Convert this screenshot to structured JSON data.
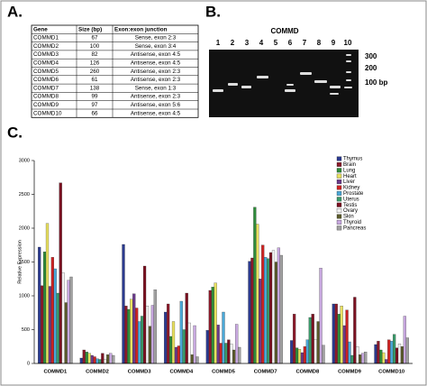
{
  "panels": [
    "A.",
    "B.",
    "C."
  ],
  "table": {
    "header": [
      "Gene",
      "Size (bp)",
      "Exon:exon junction"
    ],
    "rows": [
      [
        "COMMD1",
        "67",
        "Sense, exon 2:3"
      ],
      [
        "COMMD2",
        "100",
        "Sense, exon 3:4"
      ],
      [
        "COMMD3",
        "82",
        "Antisense, exon 4:5"
      ],
      [
        "COMMD4",
        "126",
        "Antisense, exon 4:5"
      ],
      [
        "COMMD5",
        "260",
        "Antisense, exon 2:3"
      ],
      [
        "COMMD6",
        "61",
        "Antisense, exon 2:3"
      ],
      [
        "COMMD7",
        "138",
        "Sense, exon 1:3"
      ],
      [
        "COMMD8",
        "99",
        "Antisense, exon 2:3"
      ],
      [
        "COMMD9",
        "97",
        "Antisense, exon 5:6"
      ],
      [
        "COMMD10",
        "66",
        "Antisense, exon 4:5"
      ]
    ]
  },
  "gel": {
    "title": "COMMD",
    "lanes": [
      "1",
      "2",
      "3",
      "4",
      "5",
      "6",
      "7",
      "8",
      "9",
      "10"
    ],
    "markers": [
      "300",
      "200",
      "100 bp"
    ]
  },
  "chart_data": {
    "type": "bar",
    "y_label": "Relative Expression",
    "categories": [
      "COMMD1",
      "COMMD2",
      "COMMD3",
      "COMMD4",
      "COMMD5",
      "COMMD7",
      "COMMD8",
      "COMMD9",
      "COMMD10"
    ],
    "ylim": [
      0,
      3000
    ],
    "yticks": [
      0,
      500,
      1000,
      1500,
      2000,
      2500,
      3000
    ],
    "legend": "top-right",
    "series": [
      {
        "name": "Thymus",
        "color": "#2b3a8f",
        "values": [
          1720,
          80,
          1760,
          760,
          490,
          1510,
          340,
          880,
          280
        ]
      },
      {
        "name": "Brain",
        "color": "#8b1a2a",
        "values": [
          1150,
          200,
          850,
          880,
          1080,
          1560,
          730,
          880,
          330
        ]
      },
      {
        "name": "Lung",
        "color": "#2e8b3a",
        "values": [
          1650,
          170,
          800,
          400,
          1130,
          2310,
          230,
          730,
          200
        ]
      },
      {
        "name": "Heart",
        "color": "#e8e060",
        "values": [
          2070,
          150,
          950,
          620,
          1190,
          2060,
          210,
          850,
          160
        ]
      },
      {
        "name": "Liver",
        "color": "#6a3a8a",
        "values": [
          1140,
          120,
          1030,
          240,
          570,
          1250,
          160,
          560,
          60
        ]
      },
      {
        "name": "Kidney",
        "color": "#cc2222",
        "values": [
          1570,
          100,
          820,
          260,
          300,
          1750,
          250,
          790,
          350
        ]
      },
      {
        "name": "Prostate",
        "color": "#4aa8d8",
        "values": [
          1400,
          70,
          620,
          920,
          760,
          1570,
          350,
          320,
          330
        ]
      },
      {
        "name": "Uterus",
        "color": "#3a9a6a",
        "values": [
          1040,
          60,
          700,
          500,
          300,
          1550,
          680,
          120,
          430
        ]
      },
      {
        "name": "Testis",
        "color": "#7a1020",
        "values": [
          2670,
          150,
          1440,
          1040,
          350,
          1640,
          730,
          980,
          230
        ]
      },
      {
        "name": "Ovary",
        "color": "#f2f2f2",
        "values": [
          1340,
          60,
          850,
          600,
          290,
          1670,
          350,
          250,
          290
        ]
      },
      {
        "name": "Skin",
        "color": "#5a5a2a",
        "values": [
          900,
          130,
          550,
          130,
          200,
          1500,
          620,
          130,
          250
        ]
      },
      {
        "name": "Thyroid",
        "color": "#c8a8e0",
        "values": [
          1230,
          150,
          860,
          560,
          580,
          1710,
          1410,
          150,
          700
        ]
      },
      {
        "name": "Pancreas",
        "color": "#a0a0a0",
        "values": [
          1280,
          120,
          1090,
          100,
          240,
          1600,
          270,
          170,
          380
        ]
      }
    ]
  }
}
